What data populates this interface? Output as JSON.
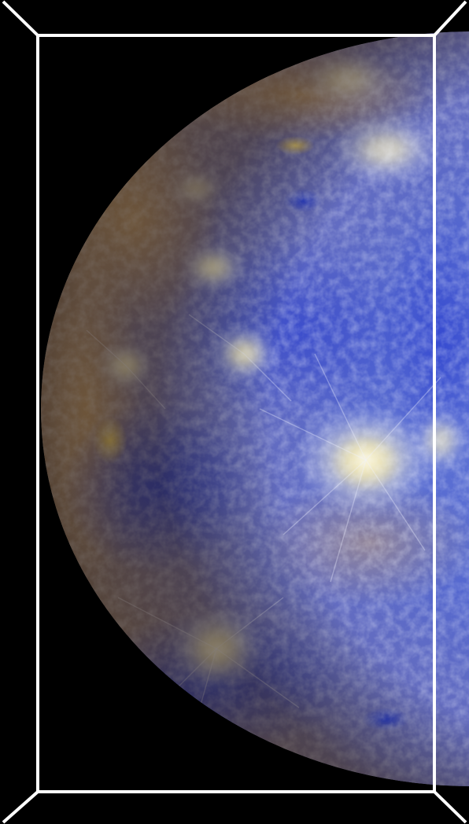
{
  "image": {
    "subject": "planet-globe",
    "background_color": "#000000",
    "frame_color": "#ffffff",
    "palette": {
      "deep_blue": "#2f48c8",
      "mid_blue": "#5a78e0",
      "pale_blue": "#9fb4f0",
      "tan": "#b89a6c",
      "brown": "#7c5c3e",
      "yellow": "#e8d070",
      "bright_ray": "#fff8e0"
    }
  }
}
